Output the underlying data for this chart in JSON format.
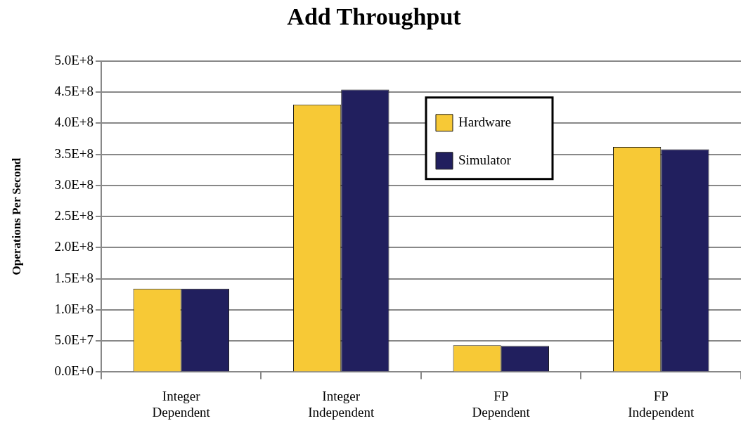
{
  "chart_data": {
    "type": "bar",
    "title": "Add Throughput",
    "ylabel": "Operations Per Second",
    "categories": [
      "Integer Dependent",
      "Integer Independent",
      "FP Dependent",
      "FP Independent"
    ],
    "series": [
      {
        "name": "Hardware",
        "color": "#f7c936",
        "values": [
          134000000,
          430000000,
          43000000,
          362000000
        ]
      },
      {
        "name": "Simulator",
        "color": "#211f5e",
        "values": [
          134000000,
          454000000,
          42000000,
          358000000
        ]
      }
    ],
    "ylim": [
      0,
      500000000
    ],
    "yticks": [
      {
        "value": 0,
        "label": "0.0E+0"
      },
      {
        "value": 50000000,
        "label": "5.0E+7"
      },
      {
        "value": 100000000,
        "label": "1.0E+8"
      },
      {
        "value": 150000000,
        "label": "1.5E+8"
      },
      {
        "value": 200000000,
        "label": "2.0E+8"
      },
      {
        "value": 250000000,
        "label": "2.5E+8"
      },
      {
        "value": 300000000,
        "label": "3.0E+8"
      },
      {
        "value": 350000000,
        "label": "3.5E+8"
      },
      {
        "value": 400000000,
        "label": "4.0E+8"
      },
      {
        "value": 450000000,
        "label": "4.5E+8"
      },
      {
        "value": 500000000,
        "label": "5.0E+8"
      }
    ],
    "grid": "y",
    "legend": "top right"
  }
}
